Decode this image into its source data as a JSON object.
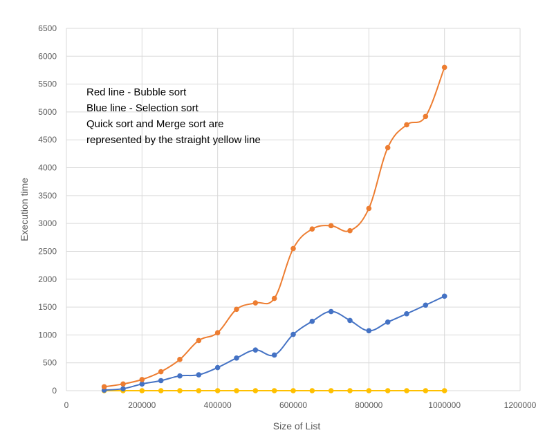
{
  "chart_data": {
    "type": "scatter",
    "style": "smooth lines with markers",
    "title": "",
    "xlabel": "Size of List",
    "ylabel": "Execution time",
    "xlim": [
      0,
      1200000
    ],
    "ylim": [
      0,
      6500
    ],
    "x_ticks": [
      "0",
      "200000",
      "400000",
      "600000",
      "800000",
      "1000000",
      "1200000"
    ],
    "y_ticks": [
      "0",
      "500",
      "1000",
      "1500",
      "2000",
      "2500",
      "3000",
      "3500",
      "4000",
      "4500",
      "5000",
      "5500",
      "6000",
      "6500"
    ],
    "grid": true,
    "legend": "none",
    "annotations": [
      "Red line - Bubble sort",
      "Blue line - Selection sort",
      "Quick sort and Merge sort are",
      "represented by the straight yellow line"
    ],
    "x": [
      100000,
      150000,
      200000,
      250000,
      300000,
      350000,
      400000,
      450000,
      500000,
      550000,
      600000,
      650000,
      700000,
      750000,
      800000,
      850000,
      900000,
      950000,
      1000000
    ],
    "series": [
      {
        "color": "#ED7D31",
        "values": [
          70,
          120,
          200,
          340,
          560,
          900,
          1040,
          1460,
          1575,
          1655,
          2550,
          2900,
          2960,
          2870,
          3270,
          4360,
          4770,
          4920,
          5800
        ]
      },
      {
        "color": "#4472C4",
        "values": [
          10,
          35,
          120,
          180,
          265,
          285,
          415,
          585,
          730,
          640,
          1010,
          1245,
          1420,
          1260,
          1075,
          1230,
          1380,
          1535,
          1695
        ]
      },
      {
        "color": "#FFC000",
        "values": [
          0,
          0,
          0,
          0,
          0,
          0,
          0,
          0,
          0,
          0,
          0,
          0,
          0,
          0,
          0,
          0,
          0,
          0,
          0
        ]
      }
    ],
    "grid_color": "#D9D9D9"
  }
}
